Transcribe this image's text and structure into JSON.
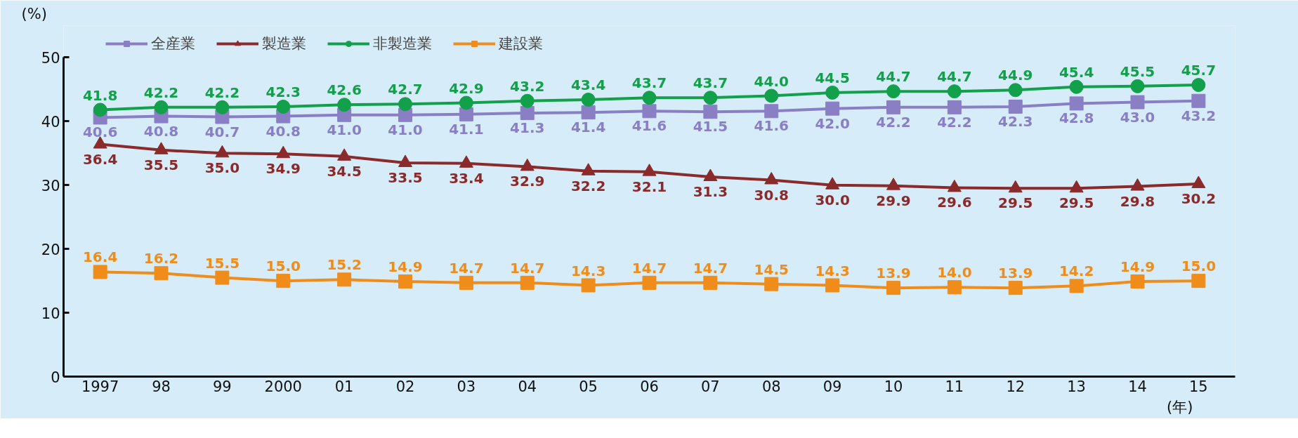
{
  "chart_data": {
    "type": "line",
    "xlabel": "(年)",
    "ylabel": "(%)",
    "categories": [
      "1997",
      "98",
      "99",
      "2000",
      "01",
      "02",
      "03",
      "04",
      "05",
      "06",
      "07",
      "08",
      "09",
      "10",
      "11",
      "12",
      "13",
      "14",
      "15"
    ],
    "series": [
      {
        "name": "全産業",
        "color": "#8a7fc4",
        "marker": "square",
        "values": [
          40.6,
          40.8,
          40.7,
          40.8,
          41.0,
          41.0,
          41.1,
          41.3,
          41.4,
          41.6,
          41.5,
          41.6,
          42.0,
          42.2,
          42.2,
          42.3,
          42.8,
          43.0,
          43.2
        ],
        "value_labels": [
          "40.6",
          "40.8",
          "40.7",
          "40.8",
          "41.0",
          "41.0",
          "41.1",
          "41.3",
          "41.4",
          "41.6",
          "41.5",
          "41.6",
          "42.0",
          "42.2",
          "42.2",
          "42.3",
          "42.8",
          "43.0",
          "43.2"
        ]
      },
      {
        "name": "製造業",
        "color": "#8b2a2a",
        "marker": "triangle",
        "values": [
          36.4,
          35.5,
          35.0,
          34.9,
          34.5,
          33.5,
          33.4,
          32.9,
          32.2,
          32.1,
          31.3,
          30.8,
          30.0,
          29.9,
          29.6,
          29.5,
          29.5,
          29.8,
          30.2
        ],
        "value_labels": [
          "36.4",
          "35.5",
          "35.0",
          "34.9",
          "34.5",
          "33.5",
          "33.4",
          "32.9",
          "32.2",
          "32.1",
          "31.3",
          "30.8",
          "30.0",
          "29.9",
          "29.6",
          "29.5",
          "29.5",
          "29.8",
          "30.2"
        ]
      },
      {
        "name": "非製造業",
        "color": "#12a04a",
        "marker": "circle",
        "values": [
          41.8,
          42.2,
          42.2,
          42.3,
          42.6,
          42.7,
          42.9,
          43.2,
          43.4,
          43.7,
          43.7,
          44.0,
          44.5,
          44.7,
          44.7,
          44.9,
          45.4,
          45.5,
          45.7
        ],
        "value_labels": [
          "41.8",
          "42.2",
          "42.2",
          "42.3",
          "42.6",
          "42.7",
          "42.9",
          "43.2",
          "43.4",
          "43.7",
          "43.7",
          "44.0",
          "44.5",
          "44.7",
          "44.7",
          "44.9",
          "45.4",
          "45.5",
          "45.7"
        ]
      },
      {
        "name": "建設業",
        "color": "#f08c1a",
        "marker": "square",
        "values": [
          16.4,
          16.2,
          15.5,
          15.0,
          15.2,
          14.9,
          14.7,
          14.7,
          14.3,
          14.7,
          14.7,
          14.5,
          14.3,
          13.9,
          14.0,
          13.9,
          14.2,
          14.9,
          15.0
        ],
        "value_labels": [
          "16.4",
          "16.2",
          "15.5",
          "15.0",
          "15.2",
          "14.9",
          "14.7",
          "14.7",
          "14.3",
          "14.7",
          "14.7",
          "14.5",
          "14.3",
          "13.9",
          "14.0",
          "13.9",
          "14.2",
          "14.9",
          "15.0"
        ]
      }
    ],
    "ylim": [
      0,
      50
    ],
    "yticks": [
      0,
      10,
      20,
      30,
      40,
      50
    ],
    "grid": false,
    "legend": "top left",
    "data_labels": true
  }
}
